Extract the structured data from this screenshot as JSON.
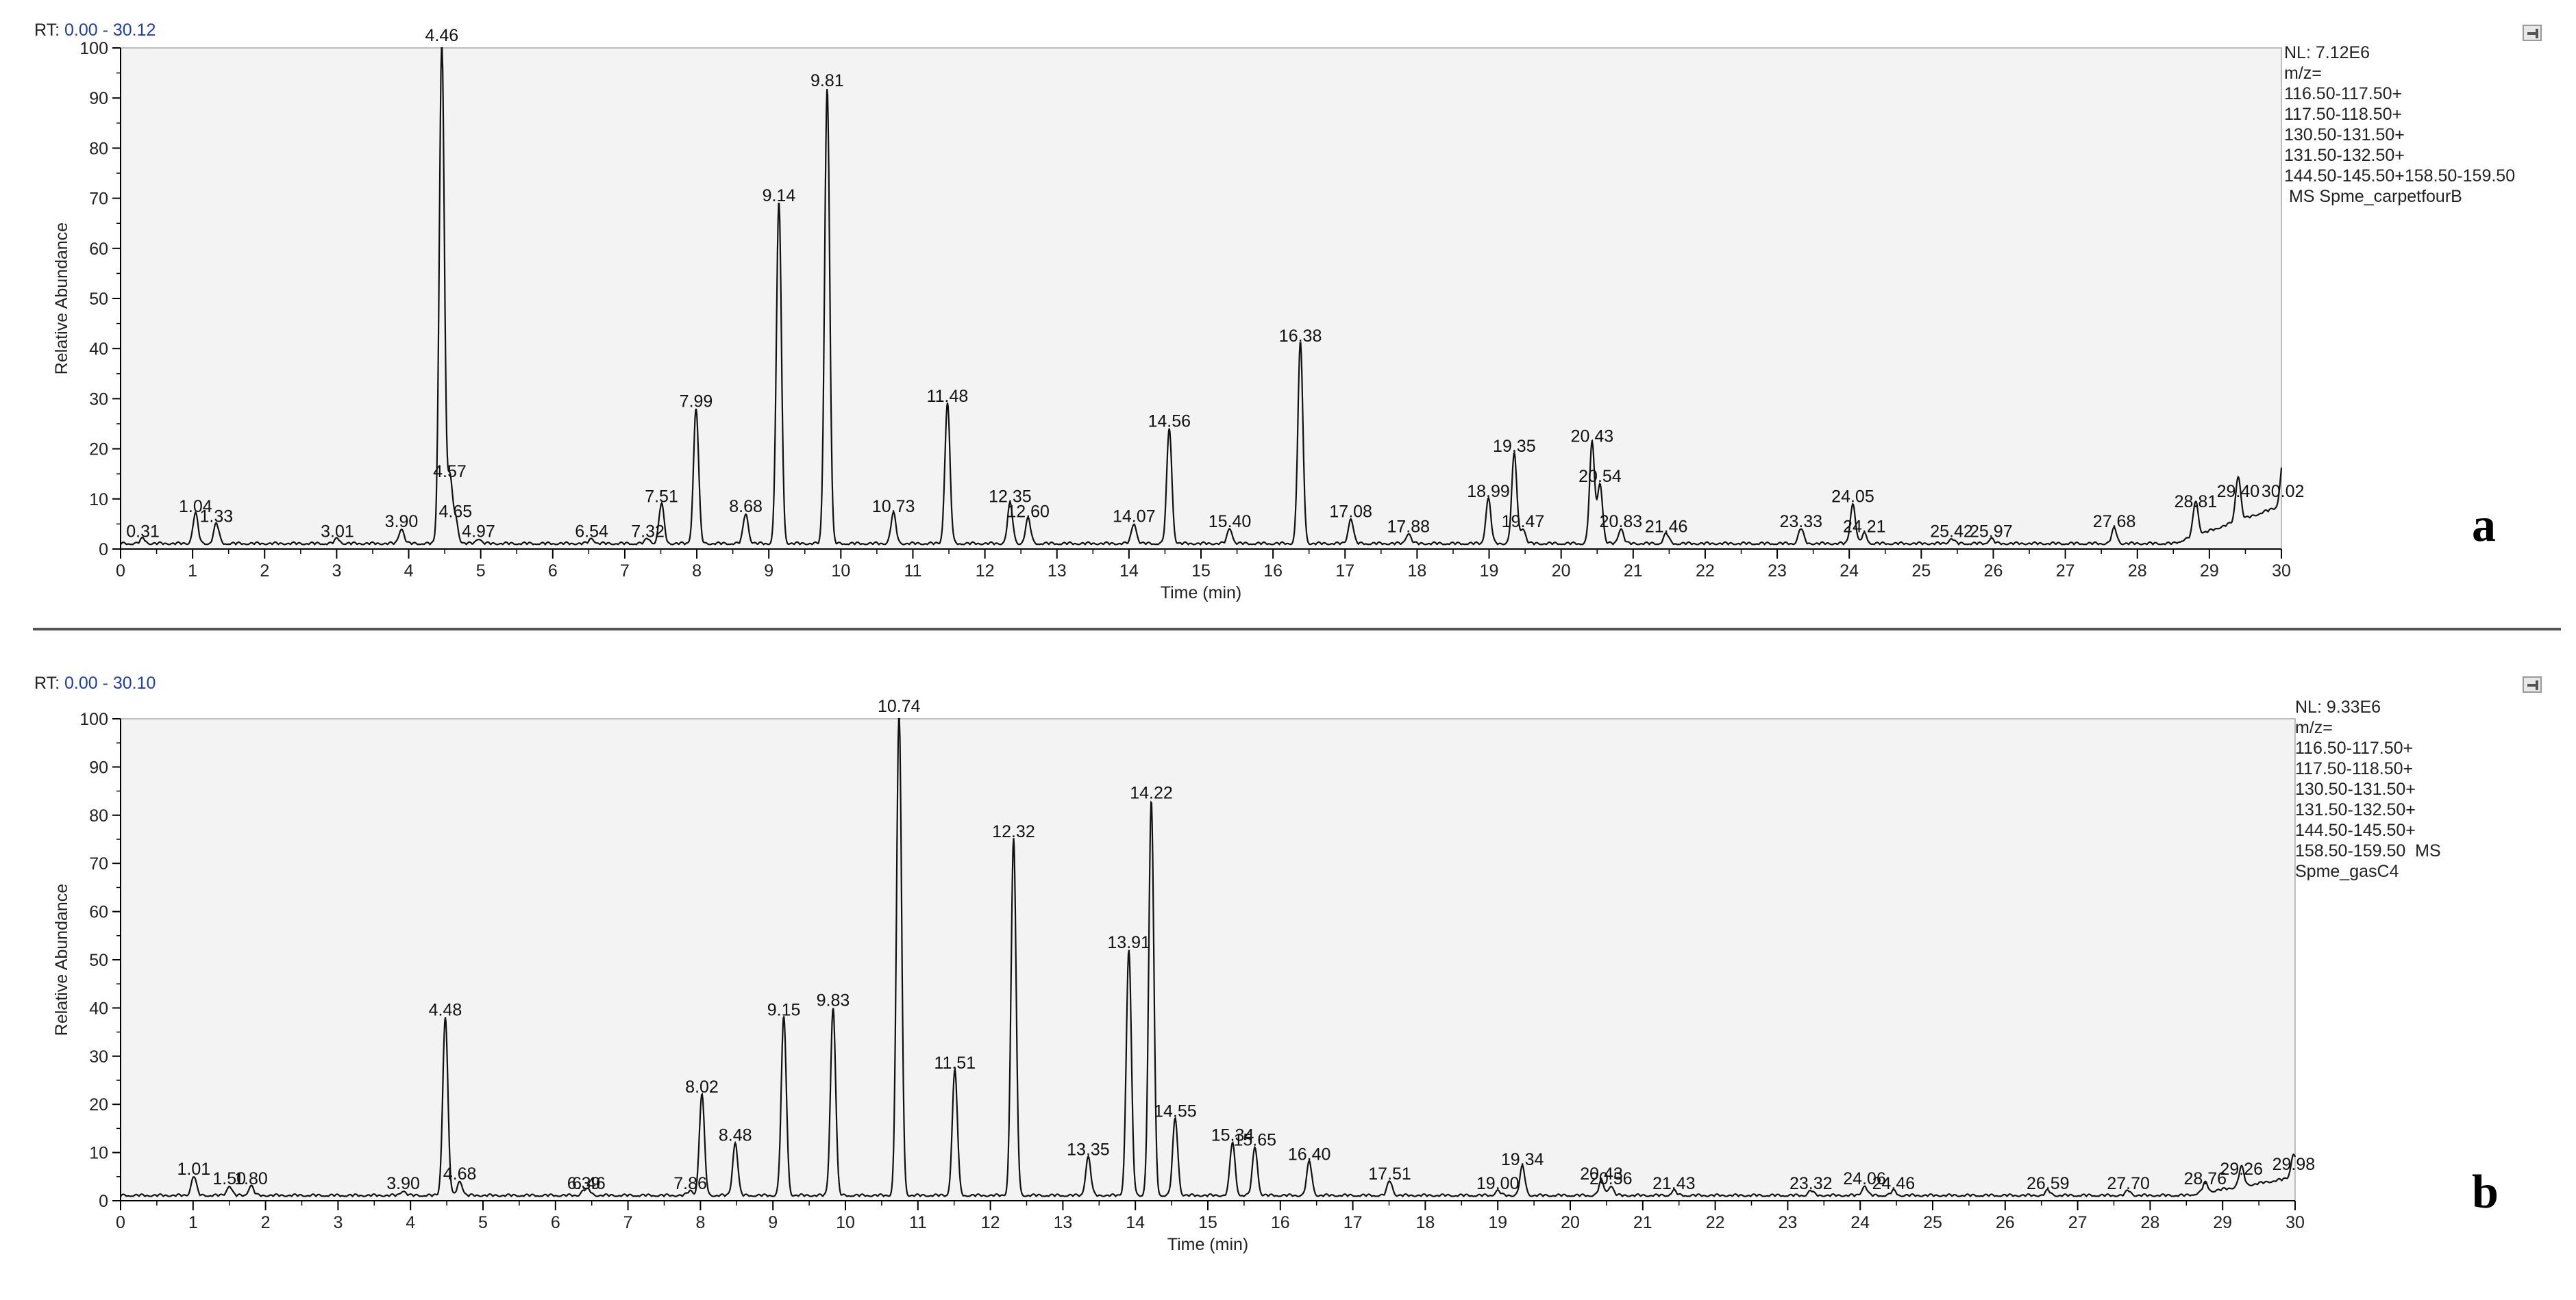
{
  "chart_data": [
    {
      "type": "line",
      "panel_letter": "a",
      "rt_label": "RT:",
      "rt_range": "0.00 - 30.12",
      "nl": "NL: 7.12E6",
      "info_lines": [
        "m/z=",
        "116.50-117.50+",
        "117.50-118.50+",
        "130.50-131.50+",
        "131.50-132.50+",
        "144.50-145.50+158.50-159.50",
        " MS Spme_carpetfourB"
      ],
      "xlabel": "Time (min)",
      "ylabel": "Relative Abundance",
      "xlim": [
        0,
        30
      ],
      "ylim": [
        0,
        100
      ],
      "xticks": [
        0,
        1,
        2,
        3,
        4,
        5,
        6,
        7,
        8,
        9,
        10,
        11,
        12,
        13,
        14,
        15,
        16,
        17,
        18,
        19,
        20,
        21,
        22,
        23,
        24,
        25,
        26,
        27,
        28,
        29,
        30
      ],
      "yticks": [
        0,
        10,
        20,
        30,
        40,
        50,
        60,
        70,
        80,
        90,
        100
      ],
      "peaks": [
        {
          "rt": 0.31,
          "label": "0.31",
          "height": 1
        },
        {
          "rt": 1.04,
          "label": "1.04",
          "height": 6
        },
        {
          "rt": 1.33,
          "label": "1.33",
          "height": 4
        },
        {
          "rt": 3.01,
          "label": "3.01",
          "height": 1
        },
        {
          "rt": 3.9,
          "label": "3.90",
          "height": 3
        },
        {
          "rt": 4.46,
          "label": "4.46",
          "height": 100
        },
        {
          "rt": 4.57,
          "label": "4.57",
          "height": 13
        },
        {
          "rt": 4.65,
          "label": "4.65",
          "height": 5
        },
        {
          "rt": 4.97,
          "label": "4.97",
          "height": 1
        },
        {
          "rt": 6.54,
          "label": "6.54",
          "height": 1
        },
        {
          "rt": 7.32,
          "label": "7.32",
          "height": 1
        },
        {
          "rt": 7.51,
          "label": "7.51",
          "height": 8
        },
        {
          "rt": 7.99,
          "label": "7.99",
          "height": 27
        },
        {
          "rt": 8.68,
          "label": "8.68",
          "height": 6
        },
        {
          "rt": 9.14,
          "label": "9.14",
          "height": 68
        },
        {
          "rt": 9.81,
          "label": "9.81",
          "height": 91
        },
        {
          "rt": 10.73,
          "label": "10.73",
          "height": 6
        },
        {
          "rt": 11.48,
          "label": "11.48",
          "height": 28
        },
        {
          "rt": 12.35,
          "label": "12.35",
          "height": 8
        },
        {
          "rt": 12.6,
          "label": "12.60",
          "height": 5
        },
        {
          "rt": 14.07,
          "label": "14.07",
          "height": 4
        },
        {
          "rt": 14.56,
          "label": "14.56",
          "height": 23
        },
        {
          "rt": 15.4,
          "label": "15.40",
          "height": 3
        },
        {
          "rt": 16.38,
          "label": "16.38",
          "height": 40
        },
        {
          "rt": 17.08,
          "label": "17.08",
          "height": 5
        },
        {
          "rt": 17.88,
          "label": "17.88",
          "height": 2
        },
        {
          "rt": 18.99,
          "label": "18.99",
          "height": 9
        },
        {
          "rt": 19.35,
          "label": "19.35",
          "height": 18
        },
        {
          "rt": 19.47,
          "label": "19.47",
          "height": 3
        },
        {
          "rt": 20.43,
          "label": "20.43",
          "height": 20
        },
        {
          "rt": 20.54,
          "label": "20.54",
          "height": 12
        },
        {
          "rt": 20.83,
          "label": "20.83",
          "height": 3
        },
        {
          "rt": 21.46,
          "label": "21.46",
          "height": 2
        },
        {
          "rt": 23.33,
          "label": "23.33",
          "height": 3
        },
        {
          "rt": 24.05,
          "label": "24.05",
          "height": 8
        },
        {
          "rt": 24.21,
          "label": "24.21",
          "height": 2
        },
        {
          "rt": 25.42,
          "label": "25.42",
          "height": 1
        },
        {
          "rt": 25.97,
          "label": "25.97",
          "height": 1
        },
        {
          "rt": 27.68,
          "label": "27.68",
          "height": 3
        },
        {
          "rt": 28.81,
          "label": "28.81",
          "height": 7
        },
        {
          "rt": 29.4,
          "label": "29.40",
          "height": 9
        },
        {
          "rt": 30.02,
          "label": "30.02",
          "height": 9
        }
      ]
    },
    {
      "type": "line",
      "panel_letter": "b",
      "rt_label": "RT:",
      "rt_range": "0.00 - 30.10",
      "nl": "NL: 9.33E6",
      "info_lines": [
        "m/z=",
        "116.50-117.50+",
        "117.50-118.50+",
        "130.50-131.50+",
        "131.50-132.50+",
        "144.50-145.50+",
        "158.50-159.50  MS",
        "Spme_gasC4"
      ],
      "xlabel": "Time (min)",
      "ylabel": "Relative Abundance",
      "xlim": [
        0,
        30
      ],
      "ylim": [
        0,
        100
      ],
      "xticks": [
        0,
        1,
        2,
        3,
        4,
        5,
        6,
        7,
        8,
        9,
        10,
        11,
        12,
        13,
        14,
        15,
        16,
        17,
        18,
        19,
        20,
        21,
        22,
        23,
        24,
        25,
        26,
        27,
        28,
        29,
        30
      ],
      "yticks": [
        0,
        10,
        20,
        30,
        40,
        50,
        60,
        70,
        80,
        90,
        100
      ],
      "peaks": [
        {
          "rt": 1.01,
          "label": "1.01",
          "height": 4
        },
        {
          "rt": 1.5,
          "label": "1.50",
          "height": 2
        },
        {
          "rt": 1.8,
          "label": "1.80",
          "height": 2
        },
        {
          "rt": 3.9,
          "label": "3.90",
          "height": 1
        },
        {
          "rt": 4.48,
          "label": "4.48",
          "height": 37
        },
        {
          "rt": 4.68,
          "label": "4.68",
          "height": 3
        },
        {
          "rt": 6.46,
          "label": "6.46",
          "height": 1
        },
        {
          "rt": 6.39,
          "label": "6.39",
          "height": 1
        },
        {
          "rt": 7.86,
          "label": "7.86",
          "height": 1
        },
        {
          "rt": 8.02,
          "label": "8.02",
          "height": 21
        },
        {
          "rt": 8.48,
          "label": "8.48",
          "height": 11
        },
        {
          "rt": 9.15,
          "label": "9.15",
          "height": 37
        },
        {
          "rt": 9.83,
          "label": "9.83",
          "height": 39
        },
        {
          "rt": 10.74,
          "label": "10.74",
          "height": 100
        },
        {
          "rt": 11.51,
          "label": "11.51",
          "height": 26
        },
        {
          "rt": 12.32,
          "label": "12.32",
          "height": 74
        },
        {
          "rt": 13.35,
          "label": "13.35",
          "height": 8
        },
        {
          "rt": 13.91,
          "label": "13.91",
          "height": 51
        },
        {
          "rt": 14.22,
          "label": "14.22",
          "height": 82
        },
        {
          "rt": 14.55,
          "label": "14.55",
          "height": 16
        },
        {
          "rt": 15.34,
          "label": "15.34",
          "height": 11
        },
        {
          "rt": 15.65,
          "label": "15.65",
          "height": 10
        },
        {
          "rt": 16.4,
          "label": "16.40",
          "height": 7
        },
        {
          "rt": 17.51,
          "label": "17.51",
          "height": 3
        },
        {
          "rt": 19.0,
          "label": "19.00",
          "height": 1
        },
        {
          "rt": 19.34,
          "label": "19.34",
          "height": 6
        },
        {
          "rt": 20.43,
          "label": "20.43",
          "height": 3
        },
        {
          "rt": 20.56,
          "label": "20.56",
          "height": 2
        },
        {
          "rt": 21.43,
          "label": "21.43",
          "height": 1
        },
        {
          "rt": 23.32,
          "label": "23.32",
          "height": 1
        },
        {
          "rt": 24.06,
          "label": "24.06",
          "height": 2
        },
        {
          "rt": 24.46,
          "label": "24.46",
          "height": 1
        },
        {
          "rt": 26.59,
          "label": "26.59",
          "height": 1
        },
        {
          "rt": 27.7,
          "label": "27.70",
          "height": 1
        },
        {
          "rt": 28.76,
          "label": "28.76",
          "height": 2
        },
        {
          "rt": 29.26,
          "label": "29.26",
          "height": 4
        },
        {
          "rt": 29.98,
          "label": "29.98",
          "height": 5
        }
      ]
    }
  ]
}
